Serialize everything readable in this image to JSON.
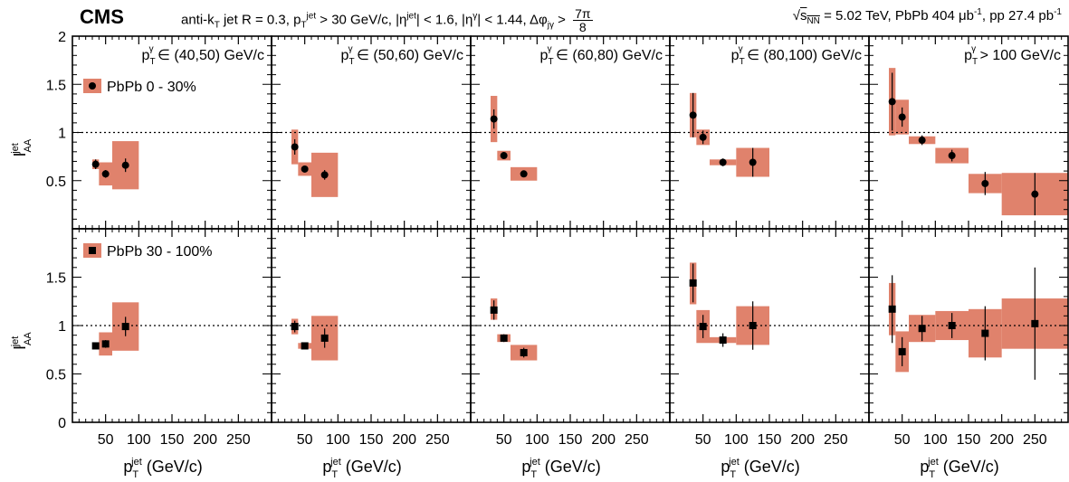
{
  "header": {
    "experiment": "CMS",
    "selection": "anti-kT jet R = 0.3, pTjet > 30 GeV/c, |ηjet| < 1.6, |ηγ| < 1.44, Δφjγ > 7π/8",
    "selection_parts": {
      "p1": "anti-k",
      "s1": "T",
      "p2": " jet R = 0.3, p",
      "s2": "T",
      "u2": "jet",
      "p3": " > 30 GeV/c, |η",
      "u3": "jet",
      "p4": "| < 1.6, |η",
      "u4": "γ",
      "p5": "| < 1.44, Δφ",
      "s5": "jγ",
      "p6": " > ",
      "frac_num": "7π",
      "frac_den": "8"
    },
    "energy": "√sNN = 5.02 TeV, PbPb 404 μb-1, pp 27.4 pb-1",
    "energy_parts": {
      "sqrt_s": "s",
      "sqrt_sub": "NN",
      "rest": " = 5.02 TeV, PbPb 404 μb",
      "u1": "-1",
      "rest2": ", pp 27.4 pb",
      "u2": "-1"
    }
  },
  "colors": {
    "systematic_band": "#e0826c",
    "marker": "#000000",
    "reference_line": "#000000"
  },
  "chart_data": {
    "type": "scatter",
    "ylabel": "I_AA^jet",
    "xlabel": "p_T^jet (GeV/c)",
    "x_range": [
      0,
      300
    ],
    "x_ticks": [
      50,
      100,
      150,
      200,
      250
    ],
    "x_tick_labels": [
      "50",
      "100",
      "150",
      "200",
      "250"
    ],
    "y_range_top": [
      0,
      2
    ],
    "y_ticks_top": [
      "0.5",
      "1",
      "1.5",
      "2"
    ],
    "y_range_bottom": [
      0,
      2
    ],
    "y_ticks_bottom": [
      "0",
      "0.5",
      "1",
      "1.5"
    ],
    "reference_y": 1,
    "panel_labels": [
      {
        "pre": "p",
        "sub": "T",
        "sup": "γ",
        "post": " ∈ (40,50) GeV/c"
      },
      {
        "pre": "p",
        "sub": "T",
        "sup": "γ",
        "post": " ∈ (50,60) GeV/c"
      },
      {
        "pre": "p",
        "sub": "T",
        "sup": "γ",
        "post": " ∈ (60,80) GeV/c"
      },
      {
        "pre": "p",
        "sub": "T",
        "sup": "γ",
        "post": " ∈ (80,100) GeV/c"
      },
      {
        "pre": "p",
        "sub": "T",
        "sup": "γ",
        "post": " > 100 GeV/c"
      }
    ],
    "rows": [
      {
        "legend": "PbPb 0 - 30%",
        "marker": "circle",
        "panels": [
          [
            {
              "x": 35,
              "y": 0.67,
              "elo": 0.05,
              "ehi": 0.05,
              "bx": [
                30,
                40
              ],
              "blo": 0.62,
              "bhi": 0.72
            },
            {
              "x": 50,
              "y": 0.57,
              "elo": 0.04,
              "ehi": 0.04,
              "bx": [
                40,
                60
              ],
              "blo": 0.45,
              "bhi": 0.69
            },
            {
              "x": 80,
              "y": 0.66,
              "elo": 0.07,
              "ehi": 0.07,
              "bx": [
                60,
                100
              ],
              "blo": 0.41,
              "bhi": 0.91
            }
          ],
          [
            {
              "x": 35,
              "y": 0.85,
              "elo": 0.08,
              "ehi": 0.08,
              "bx": [
                30,
                40
              ],
              "blo": 0.67,
              "bhi": 1.03
            },
            {
              "x": 50,
              "y": 0.62,
              "elo": 0.03,
              "ehi": 0.03,
              "bx": [
                40,
                60
              ],
              "blo": 0.55,
              "bhi": 0.69
            },
            {
              "x": 80,
              "y": 0.56,
              "elo": 0.05,
              "ehi": 0.05,
              "bx": [
                60,
                100
              ],
              "blo": 0.33,
              "bhi": 0.79
            }
          ],
          [
            {
              "x": 35,
              "y": 1.14,
              "elo": 0.1,
              "ehi": 0.1,
              "bx": [
                30,
                40
              ],
              "blo": 0.9,
              "bhi": 1.38
            },
            {
              "x": 50,
              "y": 0.76,
              "elo": 0.02,
              "ehi": 0.02,
              "bx": [
                40,
                60
              ],
              "blo": 0.71,
              "bhi": 0.81
            },
            {
              "x": 80,
              "y": 0.57,
              "elo": 0.02,
              "ehi": 0.02,
              "bx": [
                60,
                100
              ],
              "blo": 0.5,
              "bhi": 0.64
            }
          ],
          [
            {
              "x": 35,
              "y": 1.18,
              "elo": 0.23,
              "ehi": 0.23,
              "bx": [
                30,
                40
              ],
              "blo": 0.95,
              "bhi": 1.41
            },
            {
              "x": 50,
              "y": 0.95,
              "elo": 0.07,
              "ehi": 0.07,
              "bx": [
                40,
                60
              ],
              "blo": 0.87,
              "bhi": 1.03
            },
            {
              "x": 80,
              "y": 0.69,
              "elo": 0.04,
              "ehi": 0.04,
              "bx": [
                60,
                100
              ],
              "blo": 0.66,
              "bhi": 0.72
            },
            {
              "x": 125,
              "y": 0.69,
              "elo": 0.15,
              "ehi": 0.15,
              "bx": [
                100,
                150
              ],
              "blo": 0.54,
              "bhi": 0.84
            }
          ],
          [
            {
              "x": 35,
              "y": 1.32,
              "elo": 0.3,
              "ehi": 0.3,
              "bx": [
                30,
                40
              ],
              "blo": 0.97,
              "bhi": 1.67
            },
            {
              "x": 50,
              "y": 1.16,
              "elo": 0.1,
              "ehi": 0.1,
              "bx": [
                40,
                60
              ],
              "blo": 0.98,
              "bhi": 1.34
            },
            {
              "x": 80,
              "y": 0.92,
              "elo": 0.05,
              "ehi": 0.05,
              "bx": [
                60,
                100
              ],
              "blo": 0.88,
              "bhi": 0.96
            },
            {
              "x": 125,
              "y": 0.76,
              "elo": 0.06,
              "ehi": 0.06,
              "bx": [
                100,
                150
              ],
              "blo": 0.68,
              "bhi": 0.84
            },
            {
              "x": 175,
              "y": 0.47,
              "elo": 0.12,
              "ehi": 0.12,
              "bx": [
                150,
                200
              ],
              "blo": 0.37,
              "bhi": 0.57
            },
            {
              "x": 250,
              "y": 0.36,
              "elo": 0.22,
              "ehi": 0.22,
              "bx": [
                200,
                300
              ],
              "blo": 0.14,
              "bhi": 0.58
            }
          ]
        ]
      },
      {
        "legend": "PbPb 30 - 100%",
        "marker": "square",
        "panels": [
          [
            {
              "x": 35,
              "y": 0.79,
              "elo": 0.03,
              "ehi": 0.03,
              "bx": [
                30,
                40
              ],
              "blo": 0.76,
              "bhi": 0.82
            },
            {
              "x": 50,
              "y": 0.81,
              "elo": 0.04,
              "ehi": 0.04,
              "bx": [
                40,
                60
              ],
              "blo": 0.69,
              "bhi": 0.93
            },
            {
              "x": 80,
              "y": 0.99,
              "elo": 0.1,
              "ehi": 0.1,
              "bx": [
                60,
                100
              ],
              "blo": 0.74,
              "bhi": 1.24
            }
          ],
          [
            {
              "x": 35,
              "y": 0.99,
              "elo": 0.06,
              "ehi": 0.06,
              "bx": [
                30,
                40
              ],
              "blo": 0.91,
              "bhi": 1.07
            },
            {
              "x": 50,
              "y": 0.79,
              "elo": 0.03,
              "ehi": 0.03,
              "bx": [
                40,
                60
              ],
              "blo": 0.76,
              "bhi": 0.82
            },
            {
              "x": 80,
              "y": 0.87,
              "elo": 0.1,
              "ehi": 0.1,
              "bx": [
                60,
                100
              ],
              "blo": 0.64,
              "bhi": 1.1
            }
          ],
          [
            {
              "x": 35,
              "y": 1.16,
              "elo": 0.1,
              "ehi": 0.1,
              "bx": [
                30,
                40
              ],
              "blo": 1.06,
              "bhi": 1.28
            },
            {
              "x": 50,
              "y": 0.87,
              "elo": 0.04,
              "ehi": 0.04,
              "bx": [
                40,
                60
              ],
              "blo": 0.83,
              "bhi": 0.91
            },
            {
              "x": 80,
              "y": 0.72,
              "elo": 0.05,
              "ehi": 0.05,
              "bx": [
                60,
                100
              ],
              "blo": 0.64,
              "bhi": 0.8
            }
          ],
          [
            {
              "x": 35,
              "y": 1.44,
              "elo": 0.2,
              "ehi": 0.2,
              "bx": [
                30,
                40
              ],
              "blo": 1.22,
              "bhi": 1.65
            },
            {
              "x": 50,
              "y": 0.99,
              "elo": 0.12,
              "ehi": 0.12,
              "bx": [
                40,
                60
              ],
              "blo": 0.82,
              "bhi": 1.16
            },
            {
              "x": 80,
              "y": 0.85,
              "elo": 0.07,
              "ehi": 0.07,
              "bx": [
                60,
                100
              ],
              "blo": 0.82,
              "bhi": 0.88
            },
            {
              "x": 125,
              "y": 1.0,
              "elo": 0.25,
              "ehi": 0.25,
              "bx": [
                100,
                150
              ],
              "blo": 0.8,
              "bhi": 1.2
            }
          ],
          [
            {
              "x": 35,
              "y": 1.17,
              "elo": 0.35,
              "ehi": 0.35,
              "bx": [
                30,
                40
              ],
              "blo": 0.9,
              "bhi": 1.44
            },
            {
              "x": 50,
              "y": 0.73,
              "elo": 0.15,
              "ehi": 0.15,
              "bx": [
                40,
                60
              ],
              "blo": 0.52,
              "bhi": 0.94
            },
            {
              "x": 80,
              "y": 0.97,
              "elo": 0.13,
              "ehi": 0.13,
              "bx": [
                60,
                100
              ],
              "blo": 0.83,
              "bhi": 1.11
            },
            {
              "x": 125,
              "y": 1.0,
              "elo": 0.13,
              "ehi": 0.13,
              "bx": [
                100,
                150
              ],
              "blo": 0.85,
              "bhi": 1.15
            },
            {
              "x": 175,
              "y": 0.92,
              "elo": 0.28,
              "ehi": 0.28,
              "bx": [
                150,
                200
              ],
              "blo": 0.67,
              "bhi": 1.17
            },
            {
              "x": 250,
              "y": 1.02,
              "elo": 0.58,
              "ehi": 0.58,
              "bx": [
                200,
                300
              ],
              "blo": 0.76,
              "bhi": 1.28
            }
          ]
        ]
      }
    ]
  }
}
